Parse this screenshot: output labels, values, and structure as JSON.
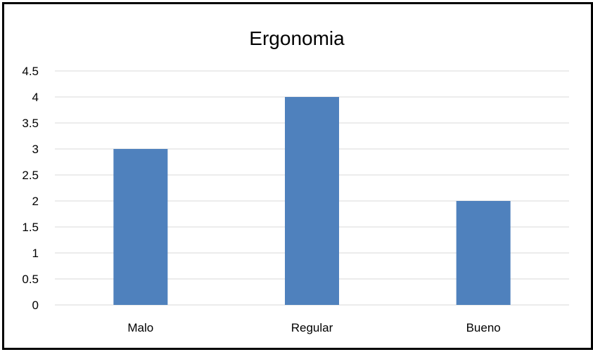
{
  "chart_data": {
    "type": "bar",
    "title": "Ergonomia",
    "categories": [
      "Malo",
      "Regular",
      "Bueno"
    ],
    "values": [
      3,
      4,
      2
    ],
    "ylim": [
      0,
      4.5
    ],
    "yticks": [
      "0",
      "0.5",
      "1",
      "1.5",
      "2",
      "2.5",
      "3",
      "3.5",
      "4",
      "4.5"
    ],
    "grid": true,
    "legend": "none",
    "bar_color": "#4F81BD",
    "grid_color": "#D9D9D9"
  }
}
